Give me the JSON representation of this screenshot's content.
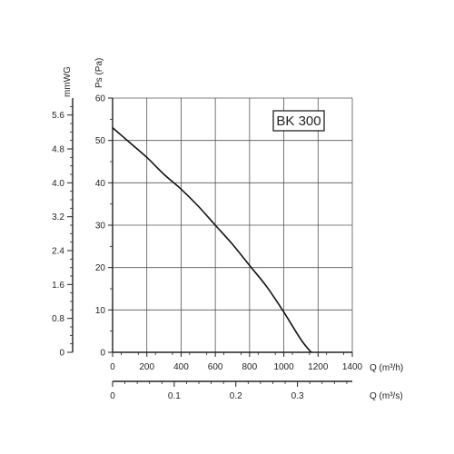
{
  "chart_data": {
    "type": "line",
    "legend_label": "BK 300",
    "legend_position": "top-right",
    "grid": true,
    "x_axis_primary": {
      "label": "Q (m³/h)",
      "range": [
        0,
        1400
      ],
      "ticks": [
        "0",
        "200",
        "400",
        "600",
        "800",
        "1000",
        "1200",
        "1400"
      ]
    },
    "x_axis_secondary": {
      "label": "Q (m³/s)",
      "range": [
        0,
        0.389
      ],
      "ticks": [
        {
          "value": 0,
          "label": "0"
        },
        {
          "value": 0.1,
          "label": "0.1"
        },
        {
          "value": 0.2,
          "label": "0.2"
        },
        {
          "value": 0.3,
          "label": "0.3"
        }
      ]
    },
    "y_axis_primary": {
      "label": "Ps (Pa)",
      "range": [
        0,
        60
      ],
      "ticks": [
        "0",
        "10",
        "20",
        "30",
        "40",
        "50",
        "60"
      ]
    },
    "y_axis_secondary": {
      "label": "mmWG",
      "range": [
        0,
        6.0
      ],
      "ticks": [
        {
          "value": 0,
          "label": "0"
        },
        {
          "value": 0.8,
          "label": "0.8"
        },
        {
          "value": 1.6,
          "label": "1.6"
        },
        {
          "value": 2.4,
          "label": "2.4"
        },
        {
          "value": 3.2,
          "label": "3.2"
        },
        {
          "value": 4.0,
          "label": "4.0"
        },
        {
          "value": 4.8,
          "label": "4.8"
        },
        {
          "value": 5.6,
          "label": "5.6"
        }
      ]
    },
    "series": [
      {
        "x": [
          0,
          100,
          200,
          300,
          400,
          500,
          600,
          700,
          800,
          900,
          1000,
          1100,
          1160
        ],
        "y": [
          53,
          49.5,
          46,
          42,
          38.5,
          34.5,
          30,
          25.5,
          20.5,
          15.5,
          9.5,
          3,
          0
        ]
      }
    ],
    "colors": {
      "curve": "#111111",
      "grid": "#555555",
      "axis": "#222222"
    }
  }
}
